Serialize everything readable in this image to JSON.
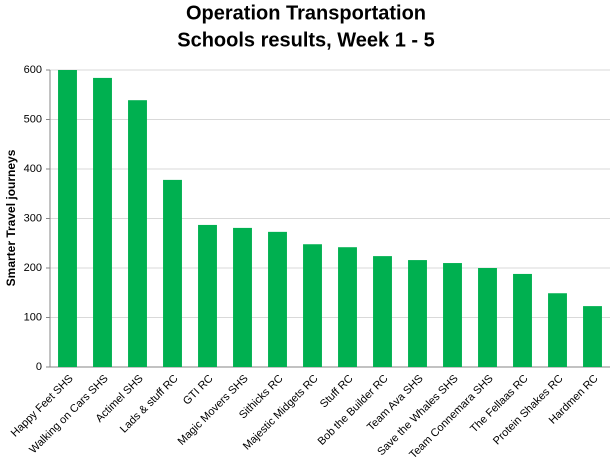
{
  "chart_data": {
    "type": "bar",
    "title": "Operation Transportation",
    "subtitle": "Schools results, Week 1 - 5",
    "y_label": "Smarter Travel journeys",
    "categories": [
      "Happy Feet SHS",
      "Walking on Cars SHS",
      "Actimel SHS",
      "Lads & stuff RC",
      "GTI RC",
      "Magic Movers SHS",
      "Sithicks RC",
      "Majestic Midgets RC",
      "Stuff RC",
      "Bob the Builder RC",
      "Team Ava SHS",
      "Save the Whales SHS",
      "Team Connemara SHS",
      "The Fellaas RC",
      "Protein Shakes RC",
      "Hardmen RC"
    ],
    "values": [
      600,
      584,
      539,
      378,
      287,
      281,
      273,
      248,
      242,
      224,
      216,
      210,
      200,
      188,
      149,
      123
    ],
    "color": "#00b050",
    "ylim": [
      0,
      600
    ],
    "yticks": [
      0,
      100,
      200,
      300,
      400,
      500,
      600
    ],
    "grid": true
  }
}
